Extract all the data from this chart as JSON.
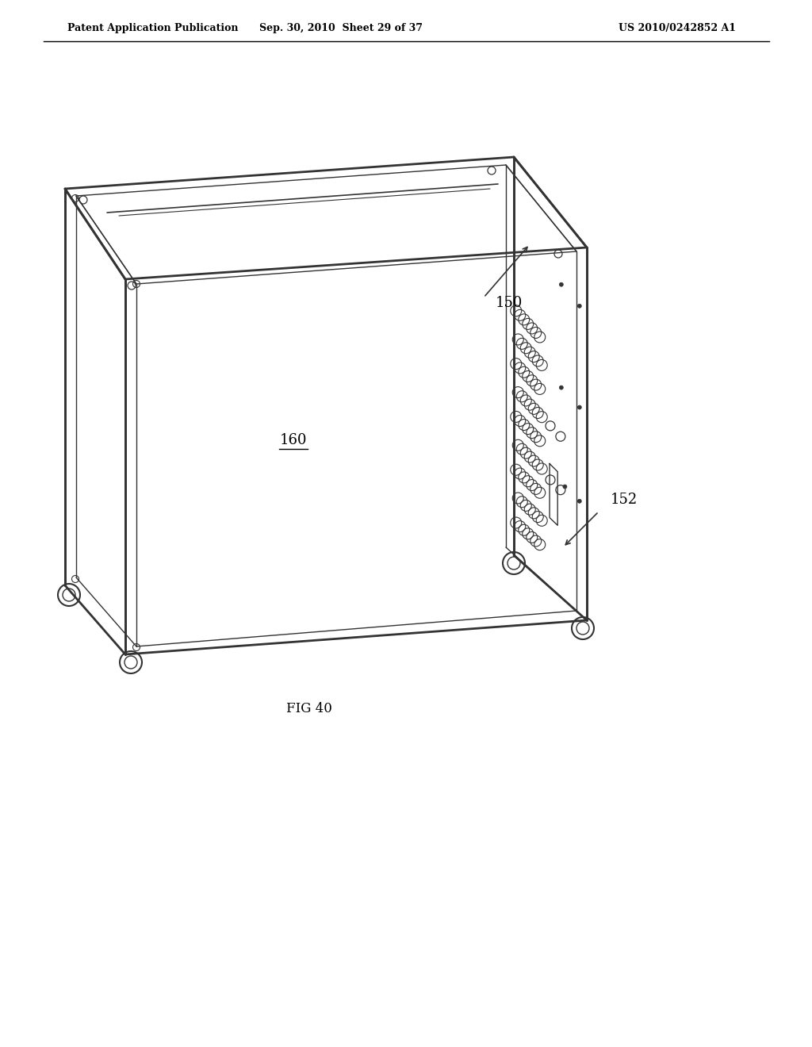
{
  "bg_color": "#ffffff",
  "line_color": "#333333",
  "header_left": "Patent Application Publication",
  "header_mid": "Sep. 30, 2010  Sheet 29 of 37",
  "header_right": "US 2010/0242852 A1",
  "fig_label": "FIG 40",
  "ref_150": "150",
  "ref_160": "160",
  "ref_152": "152",
  "title_fontsize": 10,
  "label_fontsize": 13
}
